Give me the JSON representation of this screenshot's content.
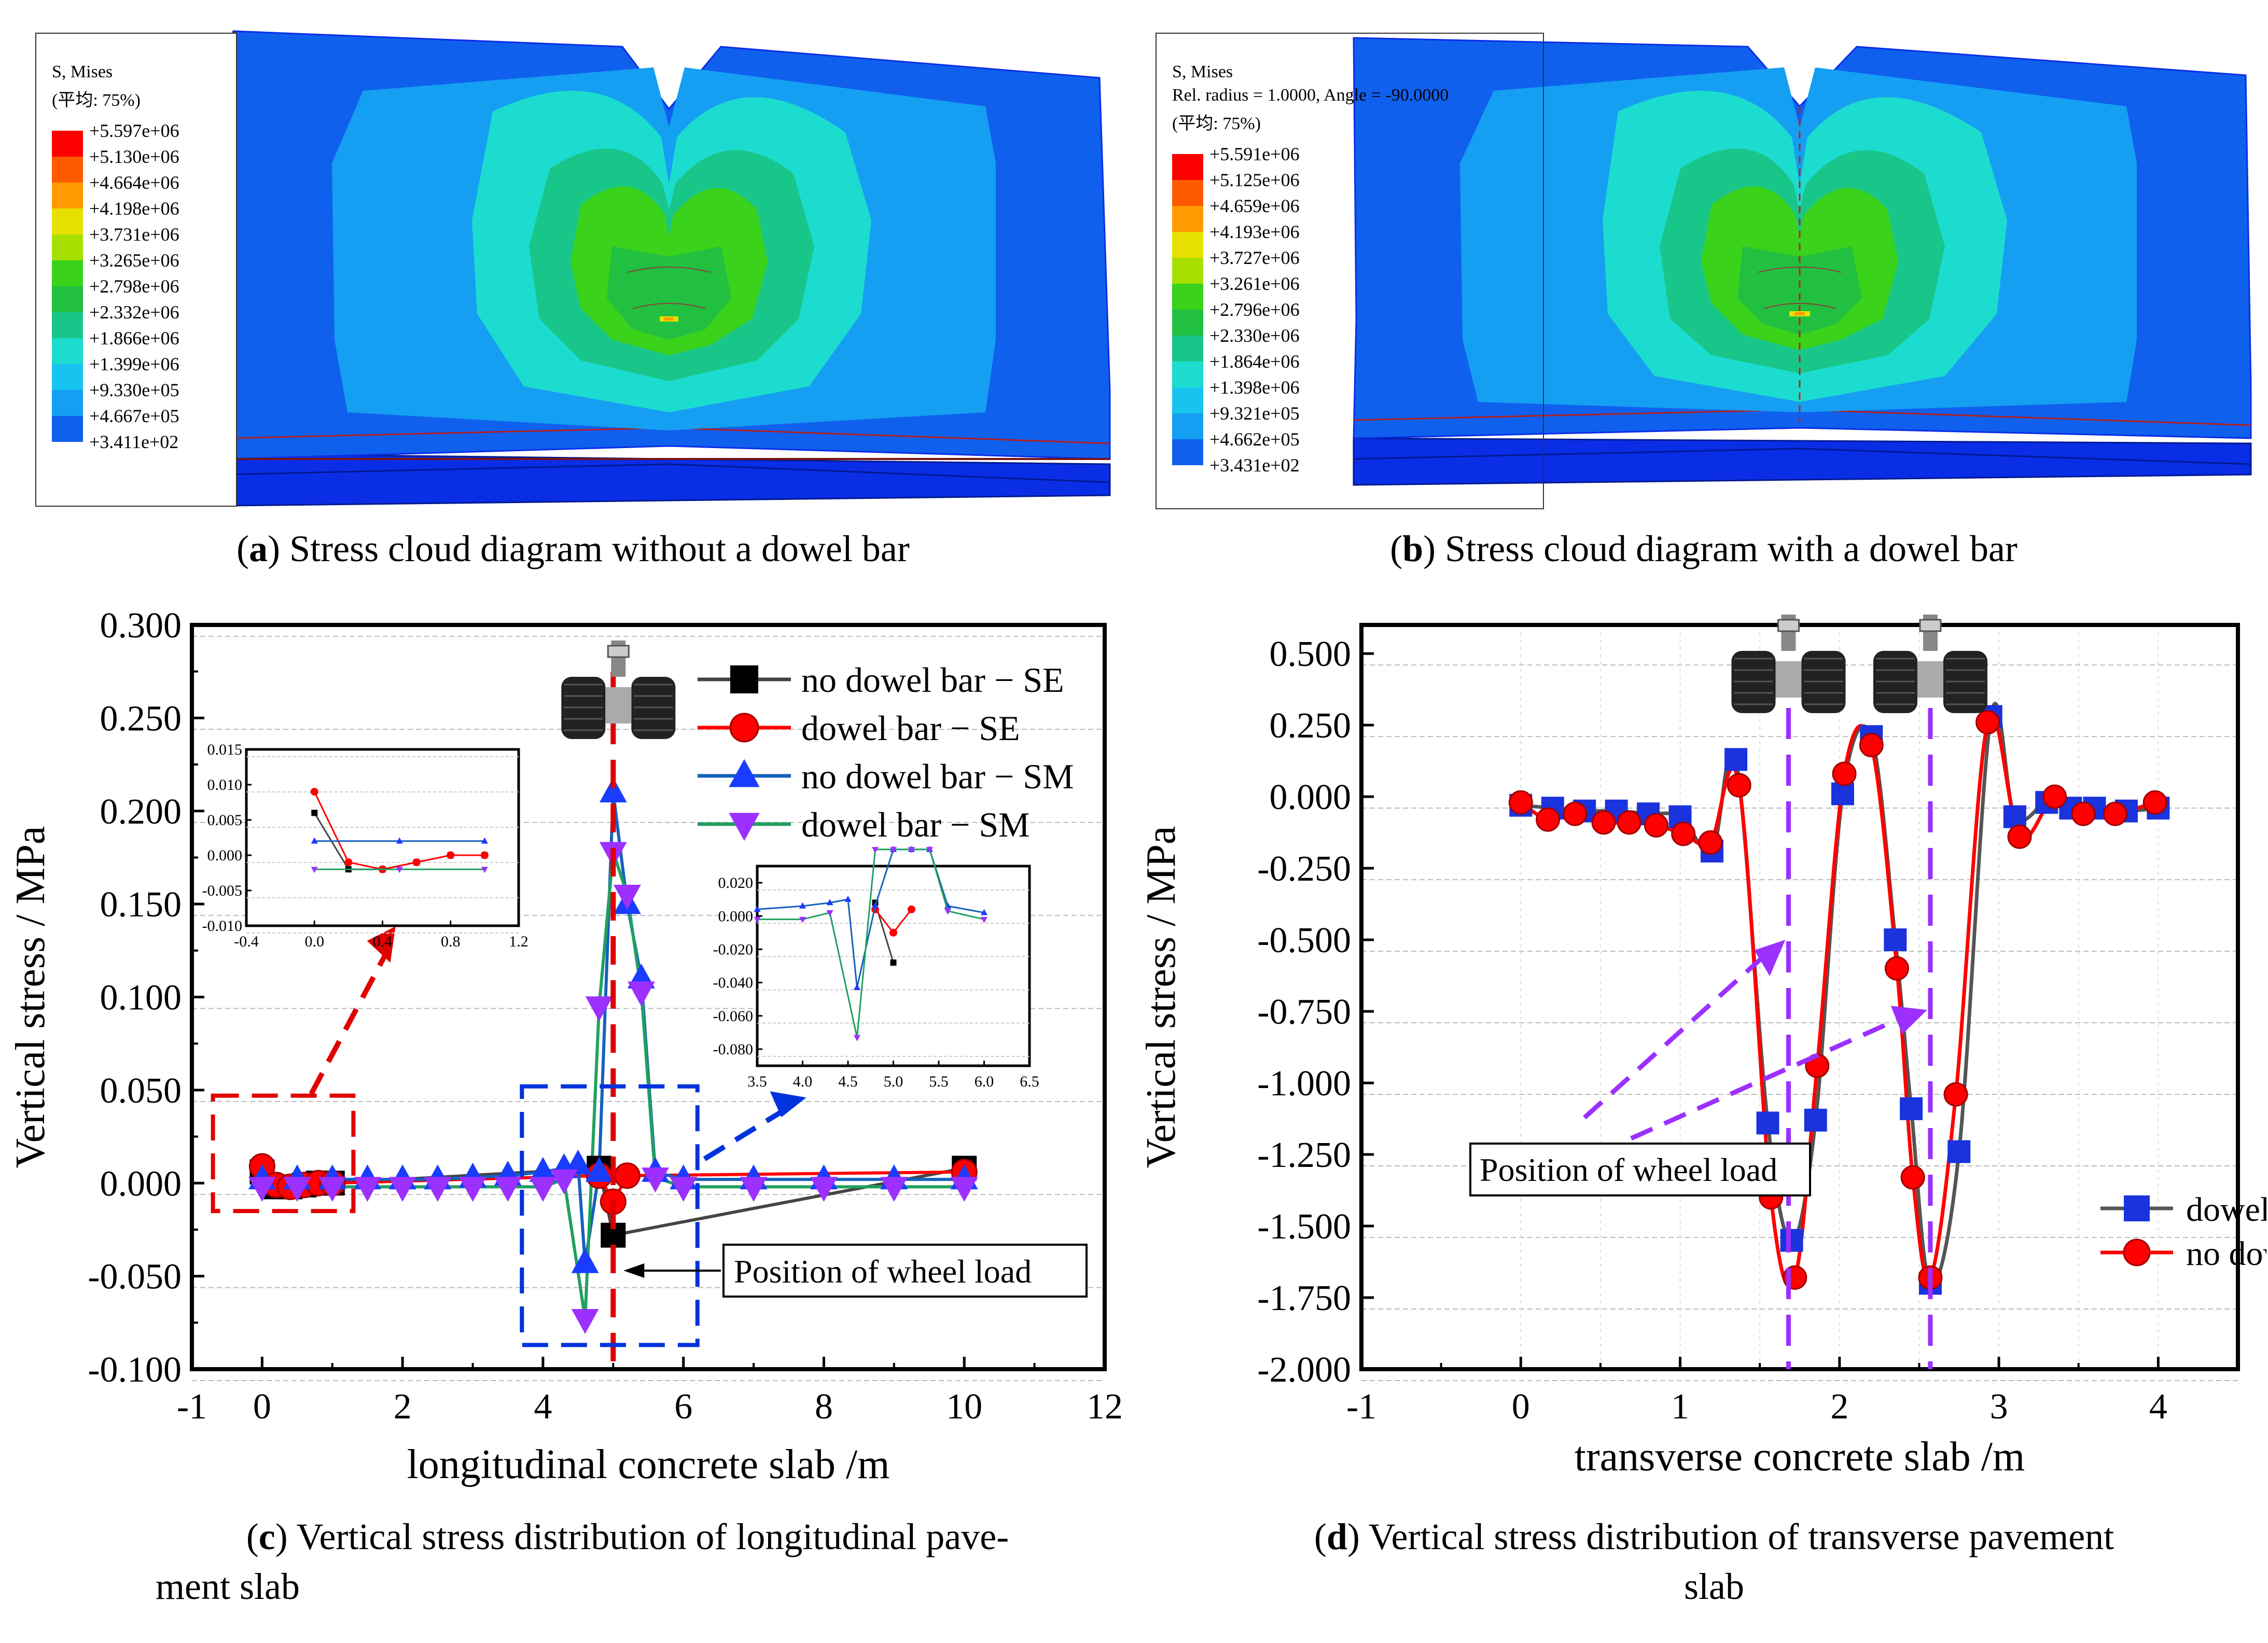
{
  "panel_a": {
    "legend_title": "S, Mises",
    "legend_avg": "(平均: 75%)",
    "values": [
      "+5.597e+06",
      "+5.130e+06",
      "+4.664e+06",
      "+4.198e+06",
      "+3.731e+06",
      "+3.265e+06",
      "+2.798e+06",
      "+2.332e+06",
      "+1.866e+06",
      "+1.399e+06",
      "+9.330e+05",
      "+4.667e+05",
      "+3.411e+02"
    ],
    "caption_letter": "a",
    "caption_text": " Stress cloud diagram without a dowel bar"
  },
  "panel_b": {
    "legend_title": "S, Mises",
    "legend_sub": "Rel. radius = 1.0000, Angle = -90.0000",
    "legend_avg": "(平均: 75%)",
    "values": [
      "+5.591e+06",
      "+5.125e+06",
      "+4.659e+06",
      "+4.193e+06",
      "+3.727e+06",
      "+3.261e+06",
      "+2.796e+06",
      "+2.330e+06",
      "+1.864e+06",
      "+1.398e+06",
      "+9.321e+05",
      "+4.662e+05",
      "+3.431e+02"
    ],
    "caption_letter": "b",
    "caption_text": " Stress cloud diagram with a dowel bar"
  },
  "contour_colors": [
    "#ff0000",
    "#ff5a00",
    "#ff9a00",
    "#e8e000",
    "#a6e000",
    "#3ad21a",
    "#22c040",
    "#19c68a",
    "#1cdcd0",
    "#17c4f0",
    "#159ff2",
    "#1060ee",
    "#0a2ee6"
  ],
  "panel_c": {
    "caption_letter": "c",
    "caption_text": " Vertical stress distribution of longitudinal pave-",
    "caption_text2": "ment slab",
    "annotation": "Position of wheel load"
  },
  "panel_d": {
    "caption_letter": "d",
    "caption_text": " Vertical stress distribution of transverse pavement",
    "caption_text2": "slab",
    "annotation": "Position of wheel load"
  },
  "chart_data": [
    {
      "id": "c",
      "type": "line",
      "xlabel": "longitudinal concrete  slab /m",
      "ylabel": "Vertical stress / MPa",
      "xlim": [
        -1,
        12
      ],
      "ylim": [
        -0.1,
        0.3
      ],
      "xticks": [
        -1,
        0,
        2,
        4,
        6,
        8,
        10,
        12
      ],
      "yticks": [
        -0.1,
        -0.05,
        0,
        0.05,
        0.1,
        0.15,
        0.2,
        0.25,
        0.3
      ],
      "ytick_labels": [
        "-0.100",
        "-0.050",
        "0.000",
        "0.050",
        "0.100",
        "0.150",
        "0.200",
        "0.250",
        "0.300"
      ],
      "wheel_x": 5.0,
      "series": [
        {
          "name": "no dowel bar − SE",
          "color": "#444444",
          "marker": "square",
          "marker_color": "#000000",
          "x": [
            0,
            0.2,
            0.4,
            0.6,
            0.8,
            1.0,
            4.8,
            5.0,
            10.0
          ],
          "y": [
            0.006,
            -0.002,
            -0.002,
            -0.001,
            0,
            0,
            0.008,
            -0.028,
            0.008
          ]
        },
        {
          "name": "dowel bar − SE",
          "color": "#ff0000",
          "marker": "circle",
          "marker_color": "#ff0000",
          "x": [
            0,
            0.2,
            0.4,
            0.6,
            0.8,
            1.0,
            4.8,
            5.0,
            5.2,
            10.0
          ],
          "y": [
            0.009,
            -0.001,
            -0.002,
            -0.001,
            0,
            0,
            0.004,
            -0.01,
            0.004,
            0.006
          ]
        },
        {
          "name": "no dowel bar − SM",
          "color": "#1560bd",
          "marker": "triangle-up",
          "marker_color": "#1a3cff",
          "x": [
            0,
            0.5,
            1,
            1.5,
            2,
            2.5,
            3,
            3.5,
            4,
            4.3,
            4.5,
            4.6,
            4.8,
            5.0,
            5.2,
            5.4,
            5.6,
            6,
            7,
            8,
            9,
            10
          ],
          "y": [
            0.002,
            0.002,
            0.002,
            0.002,
            0.002,
            0.002,
            0.003,
            0.004,
            0.006,
            0.008,
            0.01,
            -0.043,
            0.006,
            0.21,
            0.15,
            0.11,
            0.006,
            0.002,
            0.002,
            0.002,
            0.002,
            0.002
          ]
        },
        {
          "name": "dowel bar − SM",
          "color": "#20a060",
          "marker": "triangle-down",
          "marker_color": "#9b30ff",
          "x": [
            0,
            0.5,
            1,
            1.5,
            2,
            2.5,
            3,
            3.5,
            4,
            4.3,
            4.6,
            4.8,
            5.0,
            5.2,
            5.4,
            5.6,
            6,
            7,
            8,
            9,
            10
          ],
          "y": [
            -0.002,
            -0.002,
            -0.002,
            -0.002,
            -0.002,
            -0.002,
            -0.002,
            -0.002,
            -0.002,
            0.002,
            -0.073,
            0.095,
            0.178,
            0.155,
            0.103,
            0.003,
            -0.002,
            -0.002,
            -0.002,
            -0.002,
            -0.002
          ]
        }
      ],
      "insets": [
        {
          "xlim": [
            -0.4,
            1.2
          ],
          "ylim": [
            -0.01,
            0.015
          ],
          "xtick_labels": [
            "-0.4",
            "0.0",
            "0.4",
            "0.8",
            "1.2"
          ],
          "xticks": [
            -0.4,
            0,
            0.4,
            0.8,
            1.2
          ],
          "ytick_labels": [
            "-0.010",
            "-0.005",
            "0.000",
            "0.005",
            "0.010",
            "0.015"
          ],
          "yticks": [
            -0.01,
            -0.005,
            0,
            0.005,
            0.01,
            0.015
          ]
        },
        {
          "xlim": [
            3.5,
            6.5
          ],
          "ylim": [
            -0.09,
            0.03
          ],
          "xtick_labels": [
            "3.5",
            "4.0",
            "4.5",
            "5.0",
            "5.5",
            "6.0",
            "6.5"
          ],
          "xticks": [
            3.5,
            4,
            4.5,
            5,
            5.5,
            6,
            6.5
          ],
          "ytick_labels": [
            "-0.080",
            "-0.060",
            "-0.040",
            "-0.020",
            "0.000",
            "0.020"
          ],
          "yticks": [
            -0.08,
            -0.06,
            -0.04,
            -0.02,
            0,
            0.02
          ]
        }
      ]
    },
    {
      "id": "d",
      "type": "line",
      "xlabel": "transverse concrete  slab /m",
      "ylabel": "Vertical stress / MPa",
      "xlim": [
        -1,
        4.5
      ],
      "ylim": [
        -2.0,
        0.6
      ],
      "xticks": [
        -1,
        0,
        1,
        2,
        3,
        4
      ],
      "yticks": [
        -2.0,
        -1.75,
        -1.5,
        -1.25,
        -1.0,
        -0.75,
        -0.5,
        -0.25,
        0,
        0.25,
        0.5
      ],
      "ytick_labels": [
        "-2.000",
        "-1.750",
        "-1.500",
        "-1.250",
        "-1.000",
        "-0.750",
        "-0.500",
        "-0.250",
        "0.000",
        "0.250",
        "0.500"
      ],
      "wheel_x": [
        1.68,
        2.57
      ],
      "series": [
        {
          "name": "dowel bar",
          "color": "#555555",
          "marker": "square",
          "marker_color": "#1a33dd",
          "x": [
            0,
            0.2,
            0.4,
            0.6,
            0.8,
            1.0,
            1.2,
            1.35,
            1.55,
            1.7,
            1.85,
            2.02,
            2.2,
            2.35,
            2.45,
            2.57,
            2.75,
            2.95,
            3.1,
            3.3,
            3.45,
            3.6,
            3.8,
            4.0
          ],
          "y": [
            -0.03,
            -0.04,
            -0.05,
            -0.05,
            -0.06,
            -0.07,
            -0.19,
            0.13,
            -1.14,
            -1.55,
            -1.13,
            0.01,
            0.21,
            -0.5,
            -1.09,
            -1.7,
            -1.24,
            0.28,
            -0.07,
            -0.02,
            -0.04,
            -0.04,
            -0.05,
            -0.04
          ]
        },
        {
          "name": "no dowel bar",
          "color": "#ff0000",
          "marker": "circle",
          "marker_color": "#ff0000",
          "x": [
            0,
            0.17,
            0.34,
            0.52,
            0.68,
            0.85,
            1.02,
            1.19,
            1.37,
            1.57,
            1.72,
            1.86,
            2.03,
            2.2,
            2.36,
            2.46,
            2.57,
            2.73,
            2.93,
            3.13,
            3.35,
            3.53,
            3.73,
            3.98
          ],
          "y": [
            -0.02,
            -0.08,
            -0.06,
            -0.09,
            -0.09,
            -0.1,
            -0.13,
            -0.16,
            0.04,
            -1.4,
            -1.68,
            -0.94,
            0.08,
            0.18,
            -0.6,
            -1.33,
            -1.68,
            -1.04,
            0.26,
            -0.14,
            0.0,
            -0.06,
            -0.06,
            -0.02
          ]
        }
      ]
    }
  ]
}
